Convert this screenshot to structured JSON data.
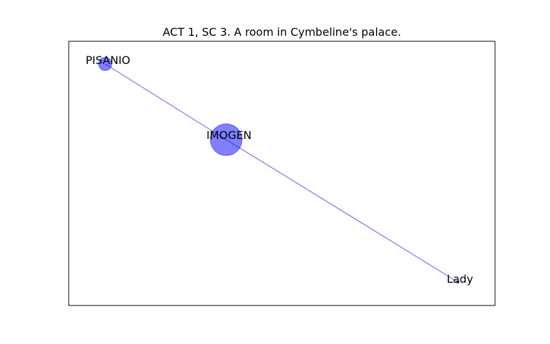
{
  "title": "ACT 1, SC 3. A room in Cymbeline's palace.",
  "colors": {
    "node": "#0000ff",
    "edge": "#0000ff",
    "frame": "#000000",
    "background": "#ffffff"
  },
  "nodes": [
    {
      "id": "PISANIO",
      "label": "PISANIO",
      "weight": "small"
    },
    {
      "id": "IMOGEN",
      "label": "IMOGEN",
      "weight": "large"
    },
    {
      "id": "Lady",
      "label": "Lady",
      "weight": "tiny"
    }
  ],
  "edges": [
    {
      "source": "PISANIO",
      "target": "IMOGEN"
    },
    {
      "source": "IMOGEN",
      "target": "Lady"
    }
  ]
}
